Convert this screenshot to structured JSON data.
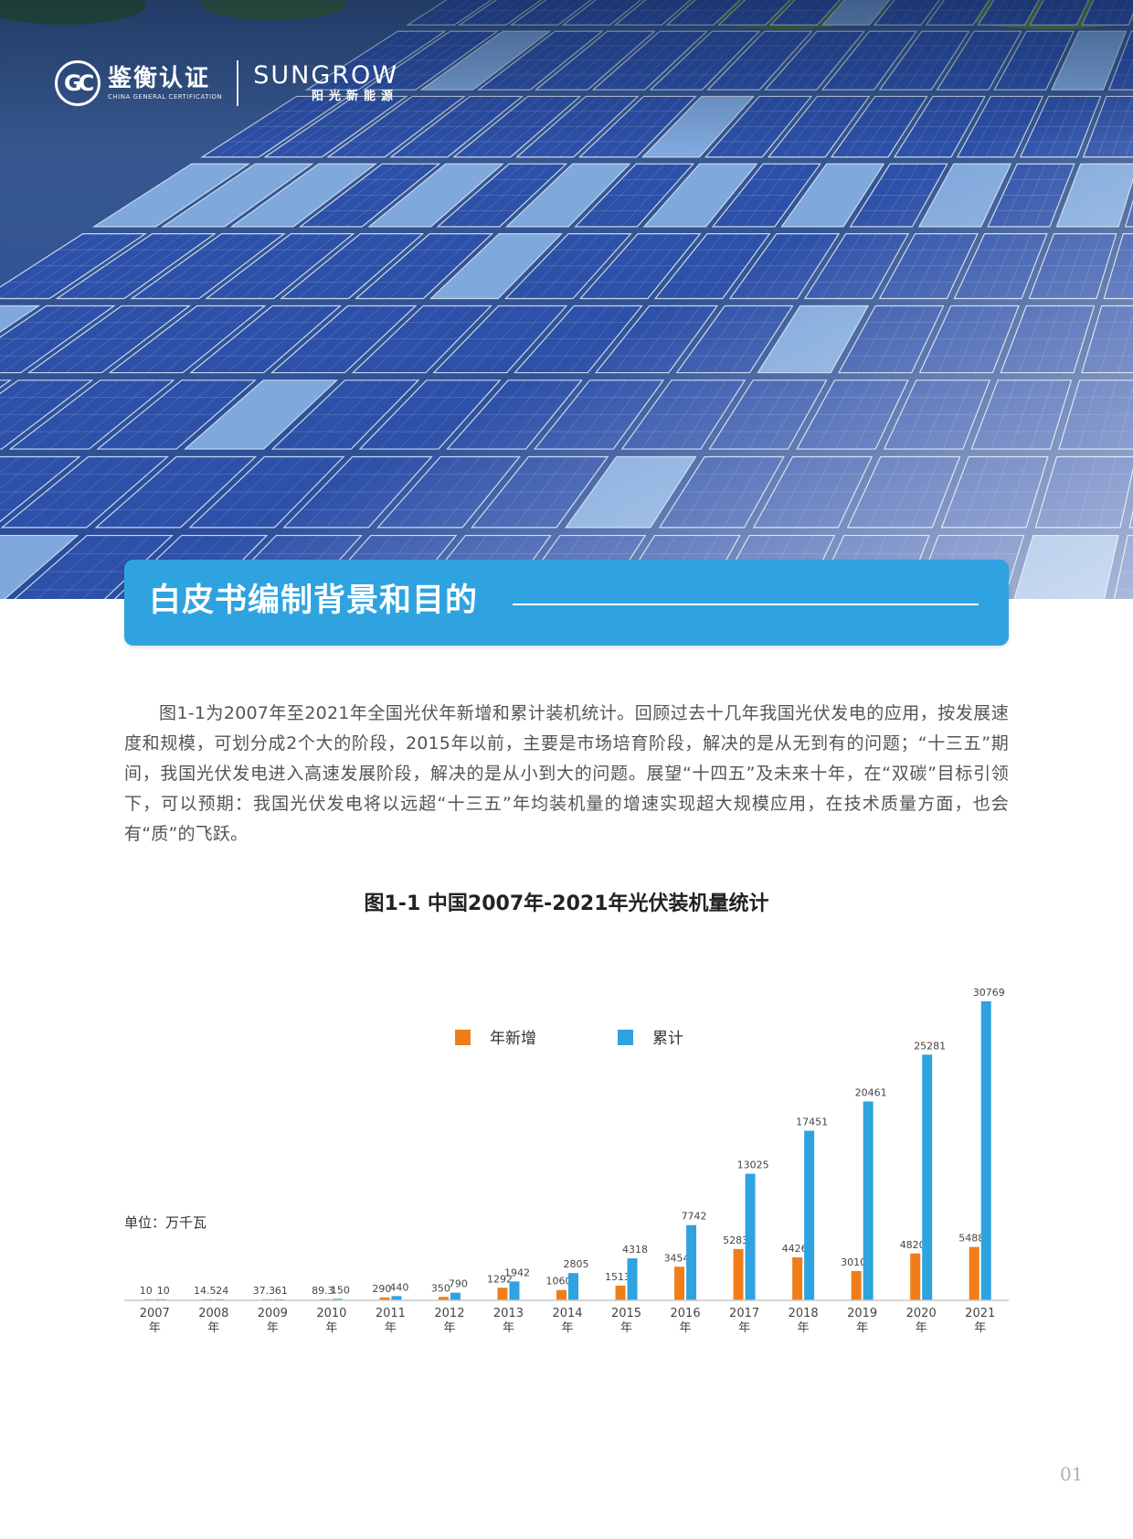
{
  "header": {
    "logo_cgc": {
      "name": "鉴衡认证",
      "english": "CHINA GENERAL CERTIFICATION",
      "mark": "GC"
    },
    "logo_sungrow": {
      "name": "SUNGROW",
      "chinese": "阳光新能源"
    }
  },
  "section": {
    "title": "白皮书编制背景和目的"
  },
  "intro": {
    "paragraph": "图1-1为2007年至2021年全国光伏年新增和累计装机统计。回顾过去十几年我国光伏发电的应用，按发展速度和规模，可划分成2个大的阶段，2015年以前，主要是市场培育阶段，解决的是从无到有的问题；“十三五”期间，我国光伏发电进入高速发展阶段，解决的是从小到大的问题。展望“十四五”及未来十年，在“双碳”目标引领下，可以预期：我国光伏发电将以远超“十三五”年均装机量的增速实现超大规模应用，在技术质量方面，也会有“质”的飞跃。"
  },
  "chart_data": {
    "type": "bar",
    "title": "图1-1 中国2007年-2021年光伏装机量统计",
    "unit_label": "单位：万千瓦",
    "categories": [
      "2007年",
      "2008年",
      "2009年",
      "2010年",
      "2011年",
      "2012年",
      "2013年",
      "2014年",
      "2015年",
      "2016年",
      "2017年",
      "2018年",
      "2019年",
      "2020年",
      "2021年"
    ],
    "category_years": [
      "2007",
      "2008",
      "2009",
      "2010",
      "2011",
      "2012",
      "2013",
      "2014",
      "2015",
      "2016",
      "2017",
      "2018",
      "2019",
      "2020",
      "2021"
    ],
    "category_suffix": "年",
    "series": [
      {
        "name": "年新增",
        "color": "#f07d19",
        "values": [
          10,
          14.5,
          37.3,
          89.3,
          290,
          350,
          1292,
          1060,
          1513,
          3454,
          5283,
          4426,
          3010,
          4820,
          5488
        ],
        "labels": [
          "10",
          "14.5",
          "37.3",
          "89.3",
          "290",
          "350",
          "1292",
          "1060",
          "1513",
          "3454",
          "5283",
          "4426",
          "3010",
          "4820",
          "5488"
        ]
      },
      {
        "name": "累计",
        "color": "#2fa3df",
        "values": [
          10,
          24,
          61,
          150,
          440,
          790,
          1942,
          2805,
          4318,
          7742,
          13025,
          17451,
          20461,
          25281,
          30769
        ],
        "labels": [
          "10",
          "24",
          "61",
          "150",
          "440",
          "790",
          "1942",
          "2805",
          "4318",
          "7742",
          "13025",
          "17451",
          "20461",
          "25281",
          "30769"
        ]
      }
    ],
    "ylim": [
      0,
      30769
    ],
    "grid": false,
    "legend_position": "top-center",
    "axis_color": "#c8c8c8"
  },
  "footer": {
    "page_number": "01"
  }
}
